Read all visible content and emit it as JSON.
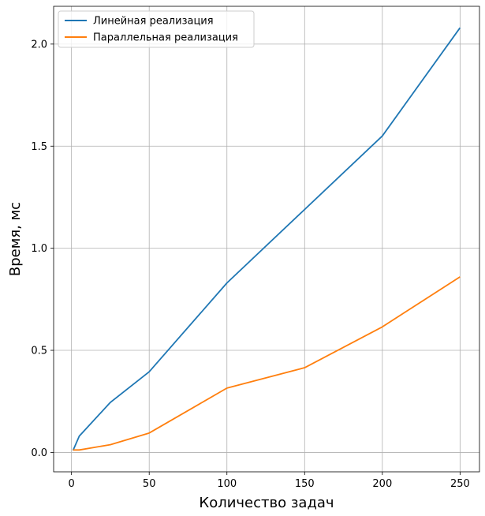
{
  "chart_data": {
    "type": "line",
    "xlabel": "Количество задач",
    "ylabel": "Время, мс",
    "xlim": [
      -11.5,
      262.5
    ],
    "ylim": [
      -0.095,
      2.185
    ],
    "xticks": [
      0,
      50,
      100,
      150,
      200,
      250
    ],
    "yticks": [
      0.0,
      0.5,
      1.0,
      1.5,
      2.0
    ],
    "xtick_labels": [
      "0",
      "50",
      "100",
      "150",
      "200",
      "250"
    ],
    "ytick_labels": [
      "0.0",
      "0.5",
      "1.0",
      "1.5",
      "2.0"
    ],
    "grid": true,
    "legend_position": "top-left",
    "series": [
      {
        "name": "Линейная реализация",
        "color": "#1f77b4",
        "x": [
          1,
          5,
          25,
          50,
          100,
          150,
          200,
          250
        ],
        "y": [
          0.01,
          0.08,
          0.245,
          0.395,
          0.83,
          1.19,
          1.55,
          2.08
        ]
      },
      {
        "name": "Параллельная реализация",
        "color": "#ff7f0e",
        "x": [
          1,
          5,
          25,
          50,
          100,
          150,
          200,
          250
        ],
        "y": [
          0.012,
          0.012,
          0.038,
          0.095,
          0.315,
          0.415,
          0.615,
          0.86
        ]
      }
    ]
  }
}
